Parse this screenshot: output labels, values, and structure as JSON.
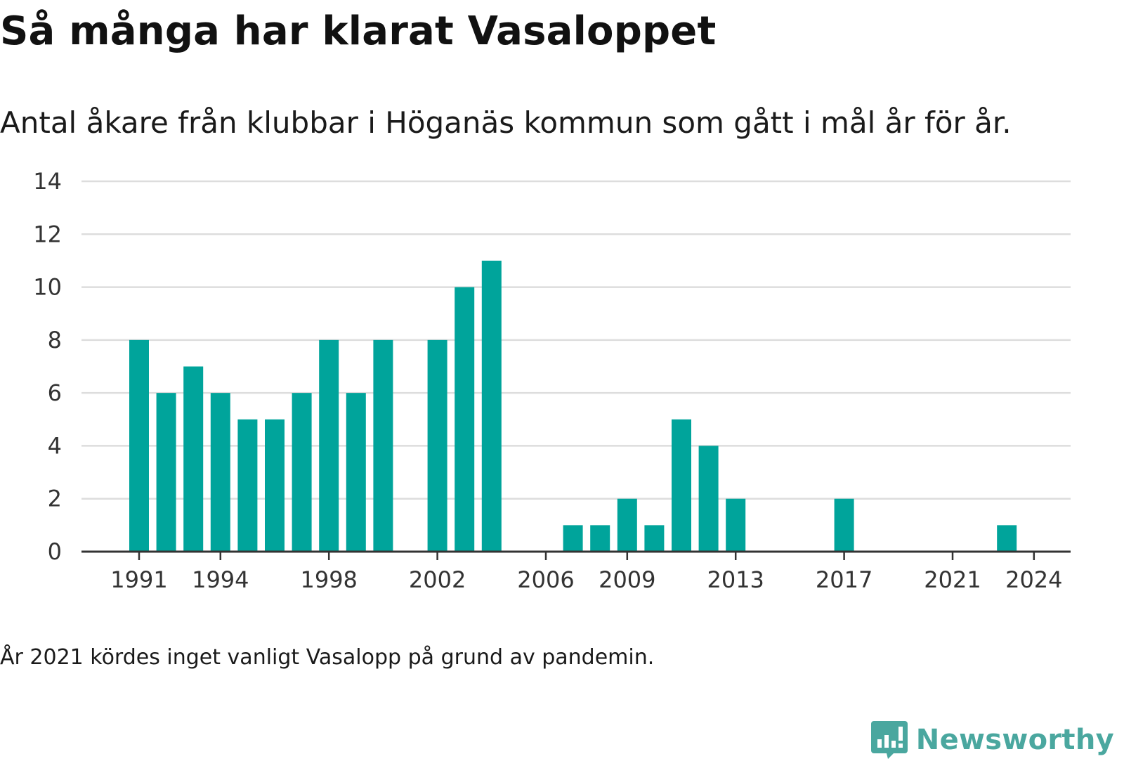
{
  "header": {
    "title": "Så många har klarat Vasaloppet",
    "subtitle": "Antal åkare från klubbar i Höganäs kommun som gått i mål år för år."
  },
  "footer": {
    "note": "År 2021 kördes inget vanligt Vasalopp på grund av pandemin.",
    "logo_text": "Newsworthy",
    "logo_icon": "bar-chart-speech-bubble-icon"
  },
  "colors": {
    "bar": "#00a49b",
    "grid": "#dddddd",
    "axis": "#333333",
    "logo": "#4aa79f"
  },
  "chart_data": {
    "type": "bar",
    "x": [
      1991,
      1992,
      1993,
      1994,
      1995,
      1996,
      1997,
      1998,
      1999,
      2000,
      2001,
      2002,
      2003,
      2004,
      2005,
      2006,
      2007,
      2008,
      2009,
      2010,
      2011,
      2012,
      2013,
      2014,
      2015,
      2016,
      2017,
      2018,
      2019,
      2020,
      2021,
      2022,
      2023,
      2024,
      2025
    ],
    "values": [
      8,
      6,
      7,
      6,
      5,
      5,
      6,
      8,
      6,
      8,
      0,
      8,
      10,
      11,
      0,
      0,
      1,
      1,
      2,
      1,
      5,
      4,
      2,
      0,
      0,
      0,
      2,
      0,
      0,
      0,
      0,
      0,
      1,
      0,
      0
    ],
    "x_ticks": [
      "1991",
      "1994",
      "1998",
      "2002",
      "2006",
      "2009",
      "2013",
      "2017",
      "2021",
      "2024"
    ],
    "y_ticks": [
      "0",
      "2",
      "4",
      "6",
      "8",
      "10",
      "12",
      "14"
    ],
    "ylim": [
      0,
      14
    ],
    "grid": true,
    "legend": "none",
    "xlabel": "",
    "ylabel": ""
  }
}
